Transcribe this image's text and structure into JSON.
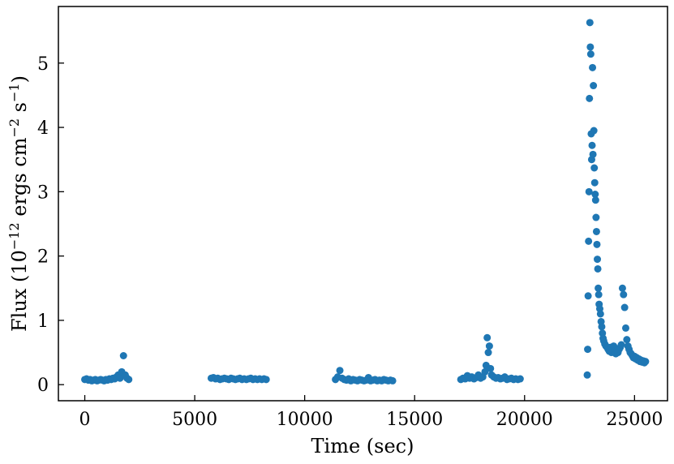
{
  "chart_data": {
    "type": "scatter",
    "xlabel": "Time (sec)",
    "ylabel": {
      "prefix": "Flux (10",
      "exp1": "−12",
      "mid1": " ergs cm",
      "exp2": "−2",
      "mid2": " s",
      "exp3": "−1",
      "suffix": ")"
    },
    "xlim": [
      -1200,
      26500
    ],
    "ylim": [
      -0.25,
      5.88
    ],
    "xticks": [
      0,
      5000,
      10000,
      15000,
      20000,
      25000
    ],
    "yticks": [
      0,
      1,
      2,
      3,
      4,
      5
    ],
    "marker_color": "#1f77b4",
    "grid": false,
    "segments": [
      {
        "x": [
          0,
          80,
          160,
          240,
          320,
          400,
          480,
          560,
          640,
          720,
          800,
          880,
          960,
          1040,
          1120,
          1200,
          1280,
          1360,
          1440,
          1520,
          1600,
          1680,
          1760,
          1840,
          1920,
          2000
        ],
        "y": [
          0.08,
          0.09,
          0.07,
          0.08,
          0.06,
          0.07,
          0.08,
          0.06,
          0.07,
          0.08,
          0.07,
          0.06,
          0.08,
          0.07,
          0.09,
          0.08,
          0.1,
          0.09,
          0.12,
          0.15,
          0.1,
          0.2,
          0.45,
          0.15,
          0.1,
          0.08
        ]
      },
      {
        "x": [
          5750,
          5850,
          5950,
          6050,
          6150,
          6250,
          6350,
          6450,
          6550,
          6650,
          6750,
          6850,
          6950,
          7050,
          7150,
          7250,
          7350,
          7450,
          7550,
          7650,
          7750,
          7850,
          7950,
          8050,
          8150,
          8250
        ],
        "y": [
          0.1,
          0.11,
          0.09,
          0.1,
          0.08,
          0.09,
          0.1,
          0.09,
          0.08,
          0.1,
          0.09,
          0.08,
          0.09,
          0.1,
          0.08,
          0.09,
          0.08,
          0.09,
          0.1,
          0.08,
          0.09,
          0.08,
          0.09,
          0.08,
          0.09,
          0.08
        ]
      },
      {
        "x": [
          11400,
          11500,
          11600,
          11700,
          11800,
          11900,
          12000,
          12100,
          12200,
          12300,
          12400,
          12500,
          12600,
          12700,
          12800,
          12900,
          13000,
          13100,
          13200,
          13300,
          13400,
          13500,
          13600,
          13700,
          13800,
          13900,
          14000
        ],
        "y": [
          0.08,
          0.12,
          0.22,
          0.1,
          0.08,
          0.07,
          0.09,
          0.06,
          0.08,
          0.07,
          0.06,
          0.08,
          0.07,
          0.06,
          0.07,
          0.11,
          0.06,
          0.07,
          0.08,
          0.06,
          0.07,
          0.06,
          0.08,
          0.07,
          0.06,
          0.07,
          0.06
        ]
      },
      {
        "x": [
          17100,
          17200,
          17300,
          17400,
          17500,
          17600,
          17700,
          17800,
          17900,
          18000,
          18100,
          18200,
          18250,
          18300,
          18350,
          18400,
          18450,
          18500,
          18600,
          18700,
          18800,
          18900,
          19000,
          19100,
          19200,
          19300,
          19400,
          19500,
          19600,
          19700,
          19800
        ],
        "y": [
          0.08,
          0.1,
          0.09,
          0.14,
          0.1,
          0.12,
          0.09,
          0.11,
          0.15,
          0.1,
          0.12,
          0.2,
          0.3,
          0.73,
          0.5,
          0.6,
          0.25,
          0.15,
          0.12,
          0.1,
          0.11,
          0.09,
          0.1,
          0.12,
          0.08,
          0.09,
          0.1,
          0.08,
          0.09,
          0.08,
          0.09
        ]
      },
      {
        "x": [
          22850,
          22870,
          22890,
          22910,
          22930,
          22950,
          22970,
          22990,
          23010,
          23030,
          23050,
          23070,
          23090,
          23110,
          23130,
          23150,
          23170,
          23190,
          23210,
          23230,
          23250,
          23270,
          23290,
          23310,
          23330,
          23350,
          23370,
          23390,
          23420,
          23450,
          23480,
          23510,
          23540,
          23570,
          23600,
          23650,
          23700,
          23750,
          23800,
          23850,
          23900,
          23950,
          24000,
          24050,
          24100,
          24150,
          24200,
          24250,
          24300,
          24350,
          24400,
          24450,
          24500,
          24550,
          24600,
          24650,
          24700,
          24750,
          24800,
          24850,
          24900,
          24950,
          25000,
          25050,
          25100,
          25150,
          25200,
          25250,
          25300,
          25350,
          25400,
          25450,
          25500
        ],
        "y": [
          0.15,
          0.55,
          1.38,
          2.23,
          3.0,
          4.45,
          5.63,
          5.25,
          5.14,
          3.9,
          3.5,
          3.72,
          4.93,
          3.58,
          4.65,
          3.95,
          3.37,
          3.14,
          2.96,
          2.87,
          2.6,
          2.38,
          2.18,
          1.95,
          1.8,
          1.5,
          1.4,
          1.25,
          1.18,
          1.1,
          0.98,
          0.9,
          0.8,
          0.72,
          0.68,
          0.63,
          0.6,
          0.58,
          0.55,
          0.52,
          0.58,
          0.5,
          0.55,
          0.6,
          0.52,
          0.48,
          0.53,
          0.5,
          0.55,
          0.58,
          0.62,
          1.5,
          1.4,
          1.2,
          0.88,
          0.7,
          0.6,
          0.55,
          0.5,
          0.48,
          0.45,
          0.42,
          0.44,
          0.4,
          0.42,
          0.38,
          0.4,
          0.36,
          0.38,
          0.35,
          0.37,
          0.34,
          0.36
        ]
      }
    ]
  }
}
